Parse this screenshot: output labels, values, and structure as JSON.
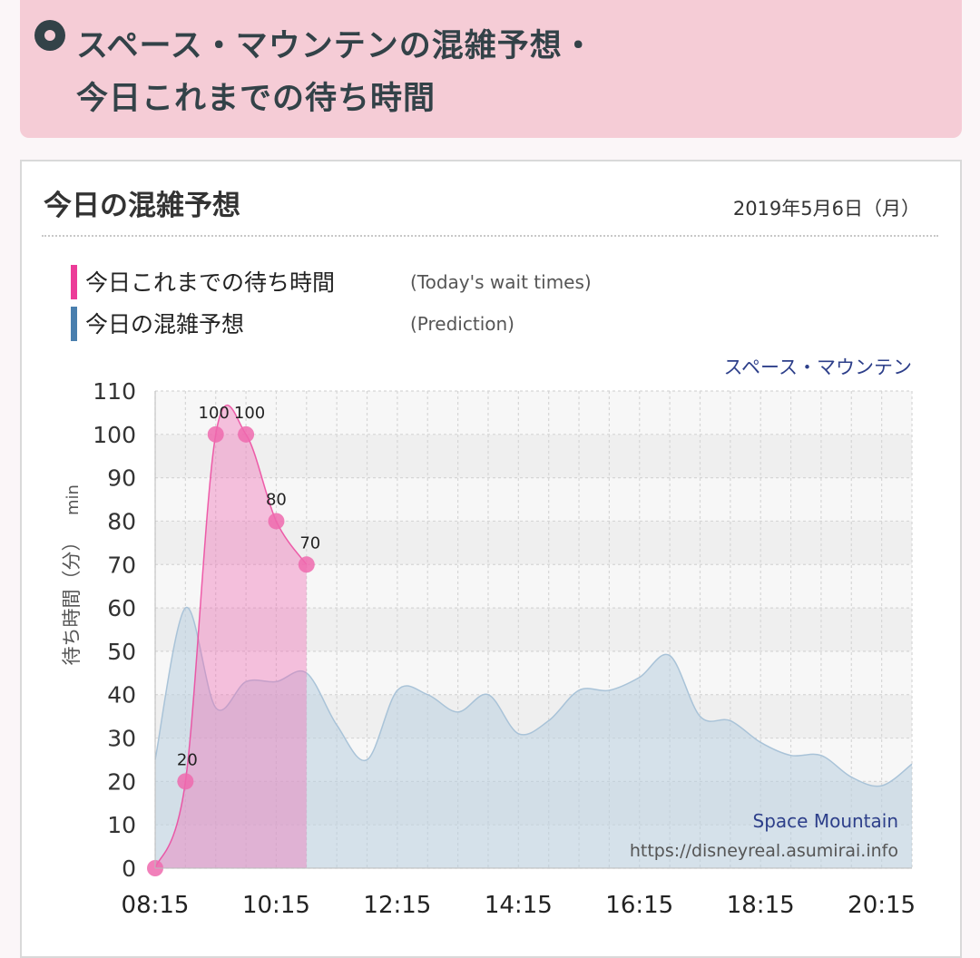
{
  "header": {
    "title_line1": "スペース・マウンテンの混雑予想・",
    "title_line2": "今日これまでの待ち時間"
  },
  "card": {
    "title": "今日の混雑予想",
    "date": "2019年5月6日（月）"
  },
  "colors": {
    "today_color": "#ec3c98",
    "prediction_color": "#4a7fae",
    "banner": "#f5ccd6"
  },
  "chart_data": {
    "type": "area",
    "attraction_jp": "スペース・マウンテン",
    "attraction_en": "Space Mountain",
    "source": "https://disneyreal.asumirai.info",
    "ylabel_jp": "待ち時間（分）",
    "ylabel_unit": "min",
    "ylim": [
      0,
      110
    ],
    "yticks": [
      0,
      10,
      20,
      30,
      40,
      50,
      60,
      70,
      80,
      90,
      100,
      110
    ],
    "xlim": [
      "08:15",
      "20:45"
    ],
    "xticks": [
      "08:15",
      "10:15",
      "12:15",
      "14:15",
      "16:15",
      "18:15",
      "20:15"
    ],
    "grid": true,
    "legend": [
      {
        "label": "今日これまでの待ち時間",
        "label_en": "(Today's wait times)",
        "color": "#ec3c98"
      },
      {
        "label": "今日の混雑予想",
        "label_en": "(Prediction)",
        "color": "#4a7fae"
      }
    ],
    "series": [
      {
        "name": "今日これまでの待ち時間",
        "points": [
          {
            "x": "08:15",
            "y": 0
          },
          {
            "x": "08:45",
            "y": 20
          },
          {
            "x": "09:15",
            "y": 100
          },
          {
            "x": "09:45",
            "y": 100
          },
          {
            "x": "10:15",
            "y": 80
          },
          {
            "x": "10:45",
            "y": 70
          }
        ]
      },
      {
        "name": "今日の混雑予想",
        "points": [
          {
            "x": "08:15",
            "y": 25
          },
          {
            "x": "08:45",
            "y": 60
          },
          {
            "x": "09:15",
            "y": 37
          },
          {
            "x": "09:45",
            "y": 43
          },
          {
            "x": "10:15",
            "y": 43
          },
          {
            "x": "10:45",
            "y": 45
          },
          {
            "x": "11:15",
            "y": 33
          },
          {
            "x": "11:45",
            "y": 25
          },
          {
            "x": "12:15",
            "y": 41
          },
          {
            "x": "12:45",
            "y": 40
          },
          {
            "x": "13:15",
            "y": 36
          },
          {
            "x": "13:45",
            "y": 40
          },
          {
            "x": "14:15",
            "y": 31
          },
          {
            "x": "14:45",
            "y": 34
          },
          {
            "x": "15:15",
            "y": 41
          },
          {
            "x": "15:45",
            "y": 41
          },
          {
            "x": "16:15",
            "y": 44
          },
          {
            "x": "16:45",
            "y": 49
          },
          {
            "x": "17:15",
            "y": 35
          },
          {
            "x": "17:45",
            "y": 34
          },
          {
            "x": "18:15",
            "y": 29
          },
          {
            "x": "18:45",
            "y": 26
          },
          {
            "x": "19:15",
            "y": 26
          },
          {
            "x": "19:45",
            "y": 21
          },
          {
            "x": "20:15",
            "y": 19
          },
          {
            "x": "20:45",
            "y": 24
          }
        ]
      }
    ]
  }
}
